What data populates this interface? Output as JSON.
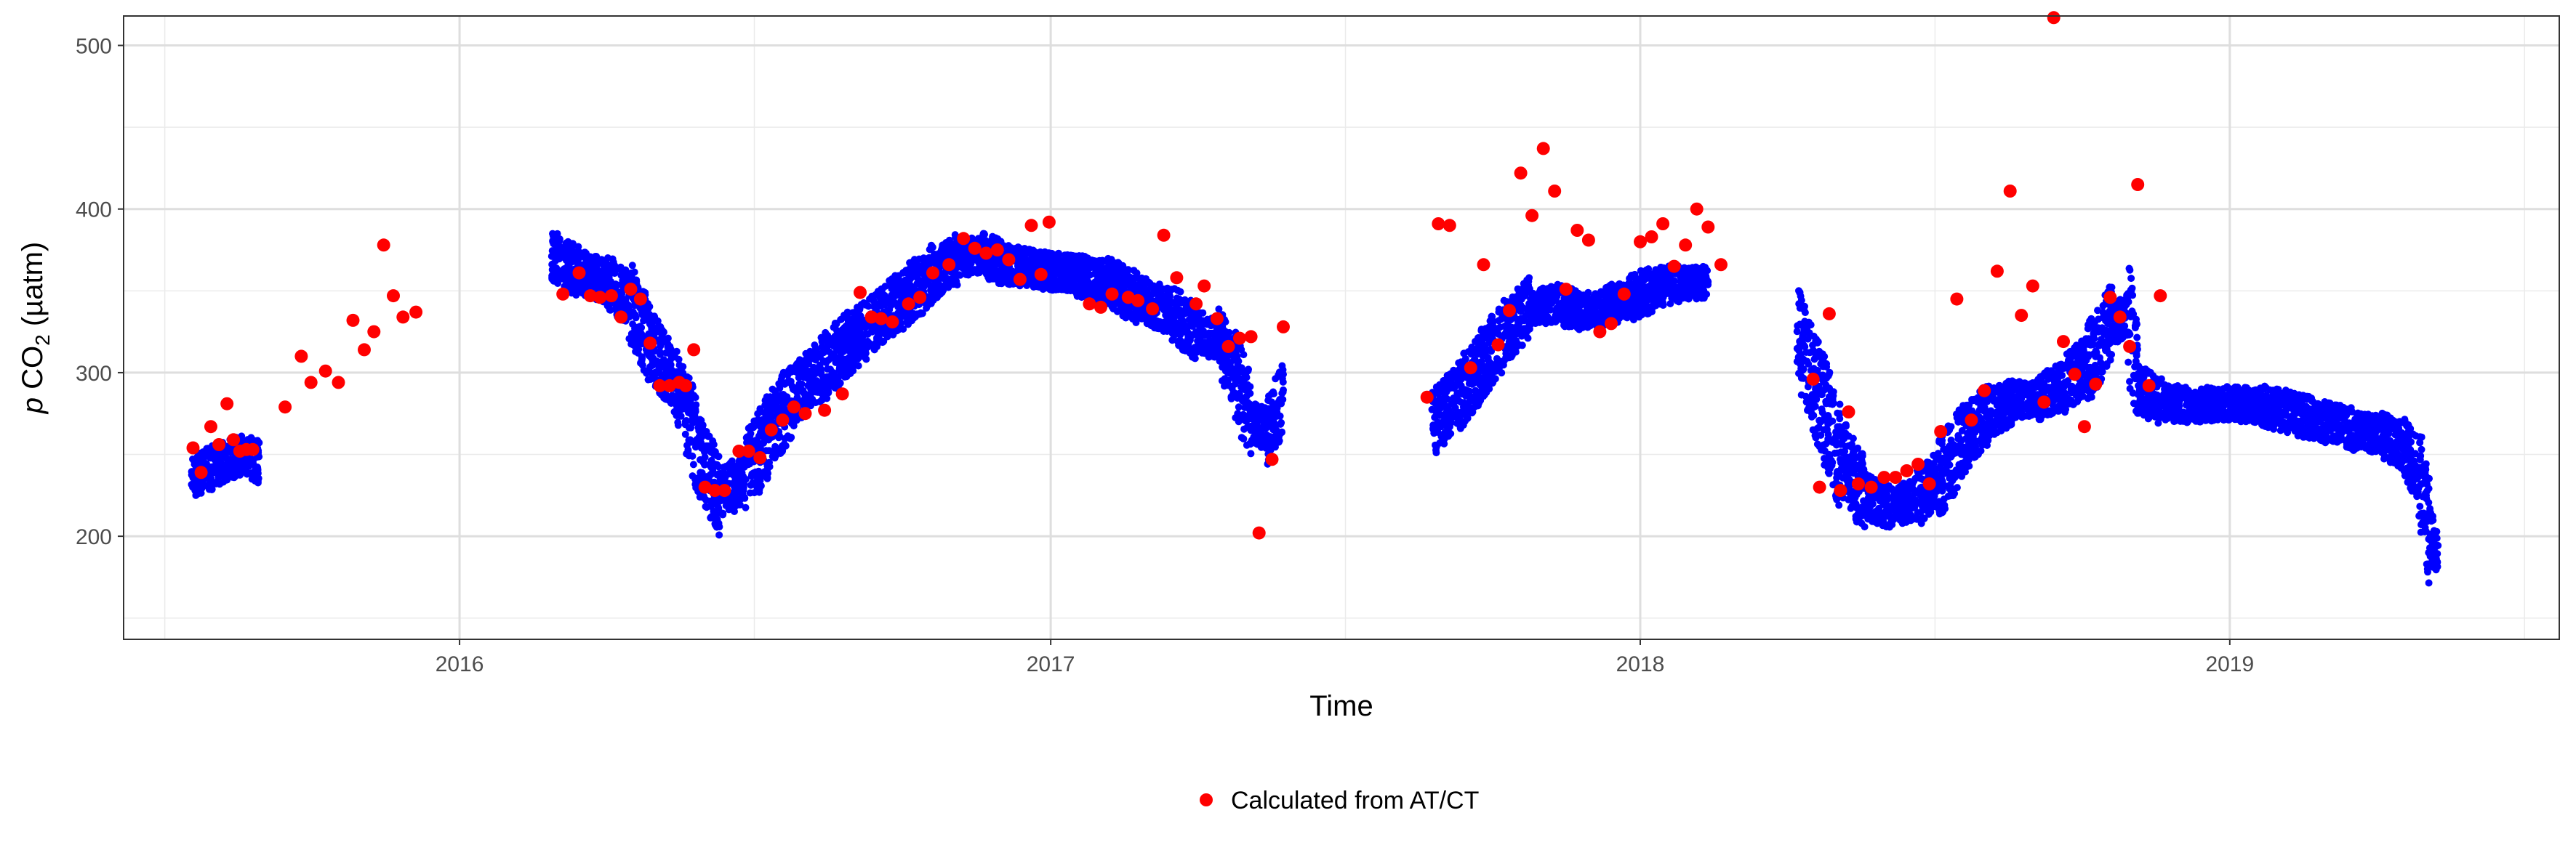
{
  "chart_data": {
    "type": "scatter",
    "xlabel": "Time",
    "ylabel": {
      "italic": "p",
      "main": " CO",
      "sub": "2",
      "unit": " (µatm)"
    },
    "x_range": [
      "2015-06-07",
      "2019-07-24"
    ],
    "ylim": [
      137,
      518
    ],
    "x_ticks": [
      {
        "date": "2016-01-01",
        "label": "2016"
      },
      {
        "date": "2017-01-01",
        "label": "2017"
      },
      {
        "date": "2018-01-01",
        "label": "2018"
      },
      {
        "date": "2019-01-01",
        "label": "2019"
      }
    ],
    "y_ticks": [
      200,
      300,
      400,
      500
    ],
    "grid": true,
    "legend_position": "bottom",
    "series": [
      {
        "key": "sensor",
        "color": "#0000ff",
        "in_legend": false,
        "trend": [
          [
            "2015-07-19",
            236
          ],
          [
            "2015-07-28",
            240
          ],
          [
            "2015-08-08",
            246
          ],
          [
            "2015-08-20",
            250
          ],
          [
            "2015-08-30",
            245
          ],
          [
            "2016-02-27",
            372
          ],
          [
            "2016-03-15",
            362
          ],
          [
            "2016-04-01",
            356
          ],
          [
            "2016-04-15",
            345
          ],
          [
            "2016-04-27",
            320
          ],
          [
            "2016-05-10",
            300
          ],
          [
            "2016-05-20",
            280
          ],
          [
            "2016-05-28",
            250
          ],
          [
            "2016-06-10",
            225
          ],
          [
            "2016-06-25",
            235
          ],
          [
            "2016-07-10",
            262
          ],
          [
            "2016-07-25",
            285
          ],
          [
            "2016-08-10",
            300
          ],
          [
            "2016-08-30",
            318
          ],
          [
            "2016-09-15",
            332
          ],
          [
            "2016-10-01",
            345
          ],
          [
            "2016-10-20",
            360
          ],
          [
            "2016-11-05",
            370
          ],
          [
            "2016-11-20",
            372
          ],
          [
            "2016-12-05",
            366
          ],
          [
            "2016-12-25",
            363
          ],
          [
            "2017-01-15",
            360
          ],
          [
            "2017-02-05",
            355
          ],
          [
            "2017-02-25",
            345
          ],
          [
            "2017-03-15",
            338
          ],
          [
            "2017-04-01",
            325
          ],
          [
            "2017-04-15",
            320
          ],
          [
            "2017-04-25",
            300
          ],
          [
            "2017-05-05",
            270
          ],
          [
            "2017-05-15",
            265
          ],
          [
            "2017-05-25",
            285
          ],
          [
            "2017-08-25",
            268
          ],
          [
            "2017-09-10",
            285
          ],
          [
            "2017-09-25",
            305
          ],
          [
            "2017-10-10",
            325
          ],
          [
            "2017-10-25",
            340
          ],
          [
            "2017-11-10",
            342
          ],
          [
            "2017-11-25",
            338
          ],
          [
            "2017-12-10",
            340
          ],
          [
            "2017-12-25",
            345
          ],
          [
            "2018-01-10",
            352
          ],
          [
            "2018-01-25",
            355
          ],
          [
            "2018-02-12",
            355
          ],
          [
            "2018-04-08",
            325
          ],
          [
            "2018-04-20",
            290
          ],
          [
            "2018-05-05",
            250
          ],
          [
            "2018-05-20",
            225
          ],
          [
            "2018-06-05",
            218
          ],
          [
            "2018-06-20",
            222
          ],
          [
            "2018-07-05",
            235
          ],
          [
            "2018-07-20",
            258
          ],
          [
            "2018-08-05",
            275
          ],
          [
            "2018-08-20",
            283
          ],
          [
            "2018-09-05",
            285
          ],
          [
            "2018-09-20",
            292
          ],
          [
            "2018-10-05",
            305
          ],
          [
            "2018-10-20",
            330
          ],
          [
            "2018-10-30",
            335
          ],
          [
            "2018-11-05",
            290
          ],
          [
            "2018-11-20",
            282
          ],
          [
            "2018-12-10",
            280
          ],
          [
            "2019-01-01",
            281
          ],
          [
            "2019-01-20",
            280
          ],
          [
            "2019-02-10",
            275
          ],
          [
            "2019-03-01",
            270
          ],
          [
            "2019-03-20",
            265
          ],
          [
            "2019-04-05",
            262
          ],
          [
            "2019-04-18",
            255
          ],
          [
            "2019-04-28",
            240
          ],
          [
            "2019-05-05",
            200
          ],
          [
            "2019-05-10",
            190
          ]
        ]
      },
      {
        "key": "at_ct",
        "name": "Calculated from AT/CT",
        "color": "#ff0000",
        "in_legend": true,
        "points": [
          [
            "2015-07-20",
            254
          ],
          [
            "2015-07-25",
            239
          ],
          [
            "2015-07-31",
            267
          ],
          [
            "2015-08-05",
            256
          ],
          [
            "2015-08-10",
            281
          ],
          [
            "2015-08-14",
            259
          ],
          [
            "2015-08-18",
            252
          ],
          [
            "2015-08-22",
            253
          ],
          [
            "2015-08-26",
            253
          ],
          [
            "2015-09-15",
            279
          ],
          [
            "2015-09-25",
            310
          ],
          [
            "2015-10-01",
            294
          ],
          [
            "2015-10-10",
            301
          ],
          [
            "2015-10-18",
            294
          ],
          [
            "2015-10-27",
            332
          ],
          [
            "2015-11-03",
            314
          ],
          [
            "2015-11-09",
            325
          ],
          [
            "2015-11-15",
            378
          ],
          [
            "2015-11-21",
            347
          ],
          [
            "2015-11-27",
            334
          ],
          [
            "2015-12-05",
            337
          ],
          [
            "2016-03-05",
            348
          ],
          [
            "2016-03-15",
            361
          ],
          [
            "2016-03-22",
            347
          ],
          [
            "2016-03-28",
            346
          ],
          [
            "2016-04-04",
            347
          ],
          [
            "2016-04-10",
            334
          ],
          [
            "2016-04-16",
            351
          ],
          [
            "2016-04-22",
            345
          ],
          [
            "2016-04-28",
            318
          ],
          [
            "2016-05-04",
            292
          ],
          [
            "2016-05-10",
            292
          ],
          [
            "2016-05-16",
            294
          ],
          [
            "2016-05-20",
            292
          ],
          [
            "2016-05-25",
            314
          ],
          [
            "2016-06-01",
            230
          ],
          [
            "2016-06-07",
            228
          ],
          [
            "2016-06-13",
            228
          ],
          [
            "2016-06-22",
            252
          ],
          [
            "2016-06-28",
            252
          ],
          [
            "2016-07-05",
            248
          ],
          [
            "2016-07-12",
            265
          ],
          [
            "2016-07-19",
            271
          ],
          [
            "2016-07-26",
            279
          ],
          [
            "2016-08-02",
            275
          ],
          [
            "2016-08-14",
            277
          ],
          [
            "2016-08-25",
            287
          ],
          [
            "2016-09-05",
            349
          ],
          [
            "2016-09-12",
            334
          ],
          [
            "2016-09-18",
            333
          ],
          [
            "2016-09-25",
            331
          ],
          [
            "2016-10-05",
            342
          ],
          [
            "2016-10-12",
            346
          ],
          [
            "2016-10-20",
            361
          ],
          [
            "2016-10-30",
            366
          ],
          [
            "2016-11-08",
            382
          ],
          [
            "2016-11-15",
            376
          ],
          [
            "2016-11-22",
            373
          ],
          [
            "2016-11-29",
            375
          ],
          [
            "2016-12-06",
            369
          ],
          [
            "2016-12-13",
            357
          ],
          [
            "2016-12-20",
            390
          ],
          [
            "2016-12-26",
            360
          ],
          [
            "2016-12-31",
            392
          ],
          [
            "2017-01-25",
            342
          ],
          [
            "2017-02-01",
            340
          ],
          [
            "2017-02-08",
            348
          ],
          [
            "2017-02-18",
            346
          ],
          [
            "2017-02-24",
            344
          ],
          [
            "2017-03-05",
            339
          ],
          [
            "2017-03-12",
            384
          ],
          [
            "2017-03-20",
            358
          ],
          [
            "2017-04-01",
            342
          ],
          [
            "2017-04-06",
            353
          ],
          [
            "2017-04-14",
            333
          ],
          [
            "2017-04-21",
            316
          ],
          [
            "2017-04-28",
            321
          ],
          [
            "2017-05-05",
            322
          ],
          [
            "2017-05-10",
            202
          ],
          [
            "2017-05-18",
            247
          ],
          [
            "2017-05-25",
            328
          ],
          [
            "2017-08-22",
            285
          ],
          [
            "2017-08-29",
            391
          ],
          [
            "2017-09-05",
            390
          ],
          [
            "2017-09-18",
            303
          ],
          [
            "2017-09-26",
            366
          ],
          [
            "2017-10-05",
            317
          ],
          [
            "2017-10-12",
            338
          ],
          [
            "2017-10-19",
            422
          ],
          [
            "2017-10-26",
            396
          ],
          [
            "2017-11-02",
            437
          ],
          [
            "2017-11-09",
            411
          ],
          [
            "2017-11-16",
            351
          ],
          [
            "2017-11-23",
            387
          ],
          [
            "2017-11-30",
            381
          ],
          [
            "2017-12-07",
            325
          ],
          [
            "2017-12-14",
            330
          ],
          [
            "2017-12-22",
            348
          ],
          [
            "2018-01-01",
            380
          ],
          [
            "2018-01-08",
            383
          ],
          [
            "2018-01-15",
            391
          ],
          [
            "2018-01-22",
            365
          ],
          [
            "2018-01-29",
            378
          ],
          [
            "2018-02-05",
            400
          ],
          [
            "2018-02-12",
            389
          ],
          [
            "2018-02-20",
            366
          ],
          [
            "2018-04-18",
            296
          ],
          [
            "2018-04-22",
            230
          ],
          [
            "2018-04-28",
            336
          ],
          [
            "2018-05-05",
            228
          ],
          [
            "2018-05-10",
            276
          ],
          [
            "2018-05-16",
            232
          ],
          [
            "2018-05-24",
            230
          ],
          [
            "2018-06-01",
            236
          ],
          [
            "2018-06-08",
            236
          ],
          [
            "2018-06-15",
            240
          ],
          [
            "2018-06-22",
            244
          ],
          [
            "2018-06-29",
            232
          ],
          [
            "2018-07-06",
            264
          ],
          [
            "2018-07-16",
            345
          ],
          [
            "2018-07-25",
            271
          ],
          [
            "2018-08-02",
            289
          ],
          [
            "2018-08-10",
            362
          ],
          [
            "2018-08-18",
            411
          ],
          [
            "2018-08-25",
            335
          ],
          [
            "2018-09-01",
            353
          ],
          [
            "2018-09-08",
            282
          ],
          [
            "2018-09-14",
            517
          ],
          [
            "2018-09-20",
            319
          ],
          [
            "2018-09-27",
            299
          ],
          [
            "2018-10-03",
            267
          ],
          [
            "2018-10-10",
            293
          ],
          [
            "2018-10-19",
            346
          ],
          [
            "2018-10-25",
            334
          ],
          [
            "2018-10-31",
            316
          ],
          [
            "2018-11-05",
            415
          ],
          [
            "2018-11-12",
            292
          ],
          [
            "2018-11-19",
            347
          ]
        ]
      }
    ]
  }
}
